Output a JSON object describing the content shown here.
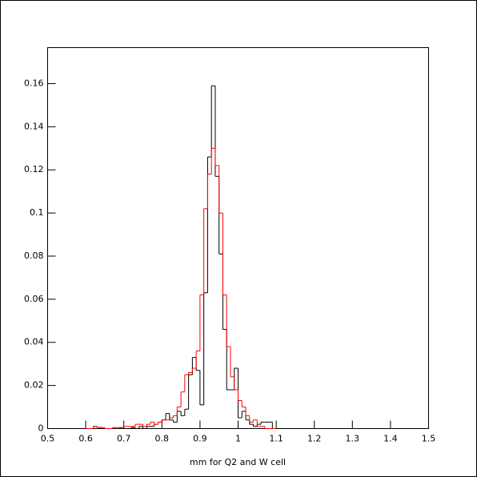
{
  "chart_data": {
    "type": "histogram",
    "xlabel": "mm for Q2 and W cell",
    "bins": [
      0.6,
      0.61,
      0.62,
      0.63,
      0.64,
      0.65,
      0.66,
      0.67,
      0.68,
      0.69,
      0.7,
      0.71,
      0.72,
      0.73,
      0.74,
      0.75,
      0.76,
      0.77,
      0.78,
      0.79,
      0.8,
      0.81,
      0.82,
      0.83,
      0.84,
      0.85,
      0.86,
      0.87,
      0.88,
      0.89,
      0.9,
      0.91,
      0.92,
      0.93,
      0.94,
      0.95,
      0.96,
      0.97,
      0.98,
      0.99,
      1.0,
      1.01,
      1.02,
      1.03,
      1.04,
      1.05,
      1.06,
      1.07,
      1.08,
      1.09,
      1.1
    ],
    "series": [
      {
        "color": "#000000",
        "values": [
          0,
          0,
          0.001,
          0.0005,
          0,
          0,
          0,
          0,
          0,
          0.0005,
          0,
          0,
          0.0005,
          0,
          0.001,
          0,
          0.001,
          0.001,
          0.002,
          0.003,
          0.004,
          0.007,
          0.004,
          0.003,
          0.008,
          0.006,
          0.009,
          0.025,
          0.033,
          0.027,
          0.011,
          0.063,
          0.126,
          0.159,
          0.117,
          0.081,
          0.046,
          0.018,
          0.018,
          0.028,
          0.005,
          0.008,
          0.004,
          0.002,
          0.001,
          0.002,
          0.003,
          0.003,
          0.003,
          0
        ]
      },
      {
        "color": "#ff0000",
        "values": [
          0,
          0,
          0.001,
          0.0005,
          0.0005,
          0,
          0,
          0.0005,
          0.0005,
          0.0005,
          0.001,
          0.001,
          0.001,
          0.002,
          0.002,
          0.001,
          0.002,
          0.003,
          0.002,
          0.003,
          0.004,
          0.004,
          0.005,
          0.006,
          0.01,
          0.017,
          0.025,
          0.026,
          0.028,
          0.036,
          0.062,
          0.102,
          0.118,
          0.13,
          0.122,
          0.1,
          0.062,
          0.038,
          0.024,
          0.018,
          0.013,
          0.01,
          0.006,
          0.003,
          0.004,
          0.001,
          0.001,
          0,
          0,
          0
        ]
      }
    ],
    "xlim": [
      0.5,
      1.5
    ],
    "ylim": [
      0,
      0.1767
    ],
    "xticks": [
      0.5,
      0.6,
      0.7,
      0.8,
      0.9,
      1,
      1.1,
      1.2,
      1.3,
      1.4,
      1.5
    ],
    "yticks": [
      0,
      0.02,
      0.04,
      0.06,
      0.08,
      0.1,
      0.12,
      0.14,
      0.16
    ]
  }
}
